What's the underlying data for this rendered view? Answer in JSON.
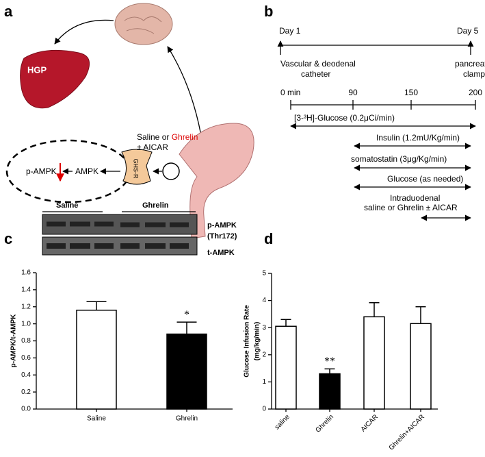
{
  "panel_labels": [
    "a",
    "b",
    "c",
    "d"
  ],
  "diagram_a": {
    "liver": "HGP",
    "treatment": [
      "Saline or ",
      "Ghrelin"
    ],
    "treatment_extra": "± AICAR",
    "pathway": [
      "p-AMPK",
      "AMPK",
      "GHS-R"
    ]
  },
  "timeline_b": {
    "days": [
      "Day 1",
      "Day 5"
    ],
    "day1_note": [
      "Vascular & deodenal",
      "catheter"
    ],
    "day5_note": [
      "pancreatic",
      "clamp"
    ],
    "times": [
      "0 min",
      "90",
      "150",
      "200"
    ],
    "infusions": [
      "[3-³H]-Glucose (0.2μCi/min)",
      "Insulin (1.2mU/Kg/min)",
      "somatostatin (3μg/Kg/min)",
      "Glucose (as needed)"
    ],
    "intraduodenal": [
      "Intraduodenal",
      "saline or Ghrelin ± AICAR"
    ]
  },
  "blot_c": {
    "groups": [
      "Saline",
      "Ghrelin"
    ],
    "bands": [
      "p-AMPK",
      "(Thr172)",
      "t-AMPK"
    ]
  },
  "chart_data": [
    {
      "type": "bar",
      "ylabel": [
        "p-AMPK/t-AMPK"
      ],
      "categories": [
        "Saline",
        "Ghrelin"
      ],
      "values": [
        1.16,
        0.88
      ],
      "errors": [
        0.1,
        0.14
      ],
      "colors": [
        "#ffffff",
        "#000000"
      ],
      "annotations": [
        null,
        "*"
      ],
      "ylim": [
        0,
        1.6
      ],
      "yticks": [
        {
          "value": 0,
          "label": "0.0"
        },
        0.2,
        0.4,
        0.6,
        0.8,
        {
          "value": 1,
          "label": "1.0"
        },
        1.2,
        1.4,
        1.6
      ],
      "rotate_labels": false
    },
    {
      "type": "bar",
      "ylabel": [
        "Glucose Infusion Rate",
        "(mg/kg/min)"
      ],
      "categories": [
        "saline",
        "Ghrelin",
        "AICAR",
        "Ghrelin+AICAR"
      ],
      "values": [
        3.05,
        1.3,
        3.4,
        3.15
      ],
      "errors": [
        0.25,
        0.18,
        0.52,
        0.62
      ],
      "colors": [
        "#ffffff",
        "#000000",
        "#ffffff",
        "#ffffff"
      ],
      "annotations": [
        null,
        "**",
        null,
        null
      ],
      "ylim": [
        0,
        5
      ],
      "yticks": [
        0,
        1,
        2,
        3,
        4,
        5
      ],
      "rotate_labels": true
    }
  ]
}
